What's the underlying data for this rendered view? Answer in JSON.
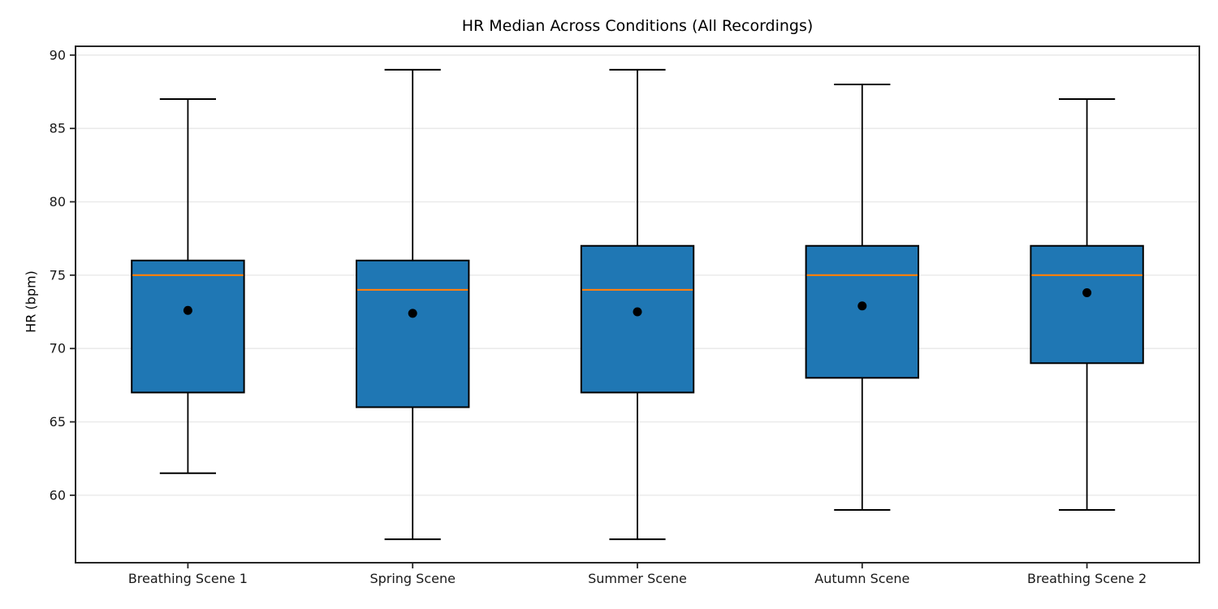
{
  "chart_data": {
    "type": "boxplot",
    "title": "HR Median Across Conditions (All Recordings)",
    "ylabel": "HR (bpm)",
    "xlabel": "",
    "categories": [
      "Breathing Scene 1",
      "Spring Scene",
      "Summer Scene",
      "Autumn Scene",
      "Breathing Scene 2"
    ],
    "yticks": [
      60,
      65,
      70,
      75,
      80,
      85,
      90
    ],
    "ylim": [
      55.4,
      90.6
    ],
    "grid": "horizontal-only, light gray, below data",
    "legend": "none",
    "series": [
      {
        "name": "Breathing Scene 1",
        "whisker_low": 61.5,
        "q1": 67,
        "median": 75,
        "q3": 76,
        "whisker_high": 87,
        "mean": 72.6
      },
      {
        "name": "Spring Scene",
        "whisker_low": 57,
        "q1": 66,
        "median": 74,
        "q3": 76,
        "whisker_high": 89,
        "mean": 72.4
      },
      {
        "name": "Summer Scene",
        "whisker_low": 57,
        "q1": 67,
        "median": 74,
        "q3": 77,
        "whisker_high": 89,
        "mean": 72.5
      },
      {
        "name": "Autumn Scene",
        "whisker_low": 59,
        "q1": 68,
        "median": 75,
        "q3": 77,
        "whisker_high": 88,
        "mean": 72.9
      },
      {
        "name": "Breathing Scene 2",
        "whisker_low": 59,
        "q1": 69,
        "median": 75,
        "q3": 77,
        "whisker_high": 87,
        "mean": 73.8
      }
    ],
    "colors": {
      "box_fill": "#1f77b4",
      "median_line": "#ff7f0e",
      "box_edge": "#000000",
      "whisker": "#000000",
      "mean_dot": "#000000",
      "grid": "#ebebeb",
      "spine": "#262626",
      "text": "#191919"
    }
  }
}
